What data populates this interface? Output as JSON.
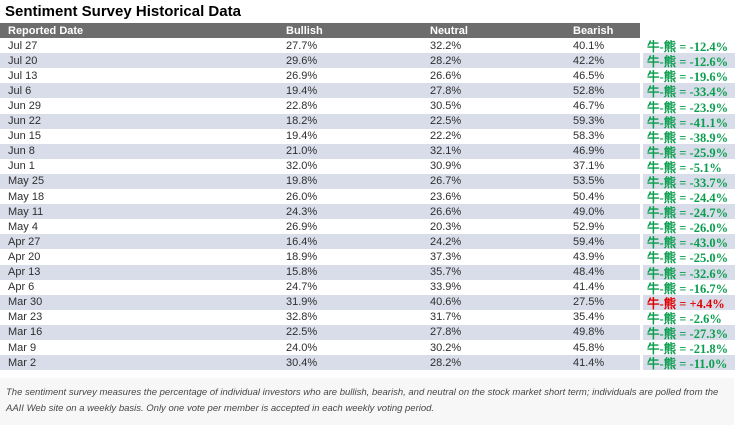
{
  "title": "Sentiment Survey Historical Data",
  "colors": {
    "header_bg": "#6d6d6d",
    "row_stripe": "#d9dde9",
    "spread_negative": "#0a9e4e",
    "spread_positive": "#e00000"
  },
  "table": {
    "headers": [
      "Reported Date",
      "Bullish",
      "Neutral",
      "Bearish"
    ],
    "spread_prefix": "牛-熊 = ",
    "rows": [
      {
        "date": "Jul 27",
        "bullish": "27.7%",
        "neutral": "32.2%",
        "bearish": "40.1%",
        "spread": "-12.4%",
        "positive": false
      },
      {
        "date": "Jul 20",
        "bullish": "29.6%",
        "neutral": "28.2%",
        "bearish": "42.2%",
        "spread": "-12.6%",
        "positive": false
      },
      {
        "date": "Jul 13",
        "bullish": "26.9%",
        "neutral": "26.6%",
        "bearish": "46.5%",
        "spread": "-19.6%",
        "positive": false
      },
      {
        "date": "Jul 6",
        "bullish": "19.4%",
        "neutral": "27.8%",
        "bearish": "52.8%",
        "spread": "-33.4%",
        "positive": false
      },
      {
        "date": "Jun 29",
        "bullish": "22.8%",
        "neutral": "30.5%",
        "bearish": "46.7%",
        "spread": "-23.9%",
        "positive": false
      },
      {
        "date": "Jun 22",
        "bullish": "18.2%",
        "neutral": "22.5%",
        "bearish": "59.3%",
        "spread": "-41.1%",
        "positive": false
      },
      {
        "date": "Jun 15",
        "bullish": "19.4%",
        "neutral": "22.2%",
        "bearish": "58.3%",
        "spread": "-38.9%",
        "positive": false
      },
      {
        "date": "Jun 8",
        "bullish": "21.0%",
        "neutral": "32.1%",
        "bearish": "46.9%",
        "spread": "-25.9%",
        "positive": false
      },
      {
        "date": "Jun 1",
        "bullish": "32.0%",
        "neutral": "30.9%",
        "bearish": "37.1%",
        "spread": "-5.1%",
        "positive": false
      },
      {
        "date": "May 25",
        "bullish": "19.8%",
        "neutral": "26.7%",
        "bearish": "53.5%",
        "spread": "-33.7%",
        "positive": false
      },
      {
        "date": "May 18",
        "bullish": "26.0%",
        "neutral": "23.6%",
        "bearish": "50.4%",
        "spread": "-24.4%",
        "positive": false
      },
      {
        "date": "May 11",
        "bullish": "24.3%",
        "neutral": "26.6%",
        "bearish": "49.0%",
        "spread": "-24.7%",
        "positive": false
      },
      {
        "date": "May 4",
        "bullish": "26.9%",
        "neutral": "20.3%",
        "bearish": "52.9%",
        "spread": "-26.0%",
        "positive": false
      },
      {
        "date": "Apr 27",
        "bullish": "16.4%",
        "neutral": "24.2%",
        "bearish": "59.4%",
        "spread": "-43.0%",
        "positive": false
      },
      {
        "date": "Apr 20",
        "bullish": "18.9%",
        "neutral": "37.3%",
        "bearish": "43.9%",
        "spread": "-25.0%",
        "positive": false
      },
      {
        "date": "Apr 13",
        "bullish": "15.8%",
        "neutral": "35.7%",
        "bearish": "48.4%",
        "spread": "-32.6%",
        "positive": false
      },
      {
        "date": "Apr 6",
        "bullish": "24.7%",
        "neutral": "33.9%",
        "bearish": "41.4%",
        "spread": "-16.7%",
        "positive": false
      },
      {
        "date": "Mar 30",
        "bullish": "31.9%",
        "neutral": "40.6%",
        "bearish": "27.5%",
        "spread": "+4.4%",
        "positive": true
      },
      {
        "date": "Mar 23",
        "bullish": "32.8%",
        "neutral": "31.7%",
        "bearish": "35.4%",
        "spread": "-2.6%",
        "positive": false
      },
      {
        "date": "Mar 16",
        "bullish": "22.5%",
        "neutral": "27.8%",
        "bearish": "49.8%",
        "spread": "-27.3%",
        "positive": false
      },
      {
        "date": "Mar 9",
        "bullish": "24.0%",
        "neutral": "30.2%",
        "bearish": "45.8%",
        "spread": "-21.8%",
        "positive": false
      },
      {
        "date": "Mar 2",
        "bullish": "30.4%",
        "neutral": "28.2%",
        "bearish": "41.4%",
        "spread": "-11.0%",
        "positive": false
      }
    ]
  },
  "footer": "The sentiment survey measures the percentage of individual investors who are bullish, bearish, and neutral on the stock market short term; individuals are polled from the AAII Web site on a weekly basis. Only one vote per member is accepted in each weekly voting period."
}
